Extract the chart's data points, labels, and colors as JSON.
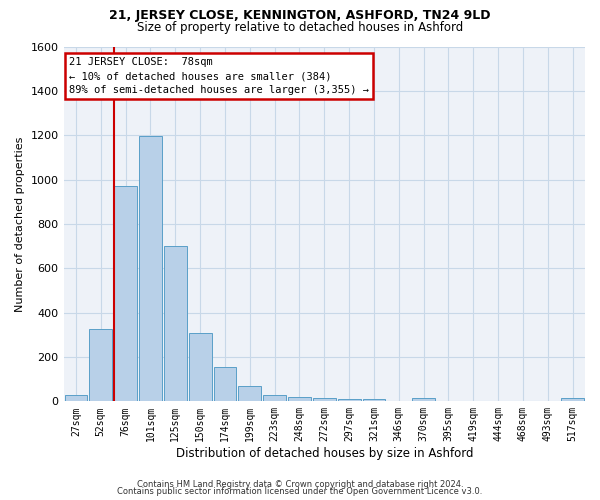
{
  "title": "21, JERSEY CLOSE, KENNINGTON, ASHFORD, TN24 9LD",
  "subtitle": "Size of property relative to detached houses in Ashford",
  "xlabel": "Distribution of detached houses by size in Ashford",
  "ylabel": "Number of detached properties",
  "footnote1": "Contains HM Land Registry data © Crown copyright and database right 2024.",
  "footnote2": "Contains public sector information licensed under the Open Government Licence v3.0.",
  "categories": [
    "27sqm",
    "52sqm",
    "76sqm",
    "101sqm",
    "125sqm",
    "150sqm",
    "174sqm",
    "199sqm",
    "223sqm",
    "248sqm",
    "272sqm",
    "297sqm",
    "321sqm",
    "346sqm",
    "370sqm",
    "395sqm",
    "419sqm",
    "444sqm",
    "468sqm",
    "493sqm",
    "517sqm"
  ],
  "values": [
    30,
    325,
    970,
    1195,
    700,
    310,
    155,
    70,
    30,
    20,
    15,
    10,
    10,
    0,
    15,
    0,
    0,
    0,
    0,
    0,
    15
  ],
  "bar_color": "#b8d0e8",
  "bar_edge_color": "#5a9fc8",
  "property_line_bar_index": 2,
  "annotation_text_line1": "21 JERSEY CLOSE:  78sqm",
  "annotation_text_line2": "← 10% of detached houses are smaller (384)",
  "annotation_text_line3": "89% of semi-detached houses are larger (3,355) →",
  "annotation_box_color": "#cc0000",
  "property_line_color": "#cc0000",
  "grid_color": "#c8d8e8",
  "bg_color": "#eef2f8",
  "ylim": [
    0,
    1600
  ],
  "yticks": [
    0,
    200,
    400,
    600,
    800,
    1000,
    1200,
    1400,
    1600
  ]
}
